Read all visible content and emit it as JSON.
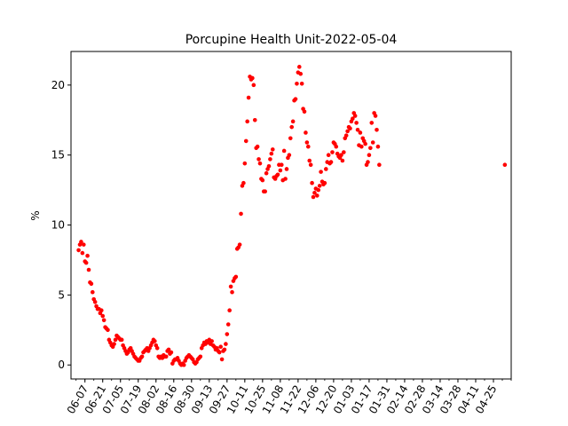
{
  "chart_data": {
    "type": "scatter",
    "title": "Porcupine Health Unit-2022-05-04",
    "xlabel": "",
    "ylabel": "%",
    "x_start": "2021-06-01",
    "x_end": "2022-05-04",
    "ylim": [
      -1.0,
      22.4
    ],
    "yticks": [
      0,
      5,
      10,
      15,
      20
    ],
    "xtick_labels": [
      "06-07",
      "06-21",
      "07-05",
      "07-19",
      "08-02",
      "08-16",
      "08-30",
      "09-13",
      "09-27",
      "10-11",
      "10-25",
      "11-08",
      "11-22",
      "12-06",
      "12-20",
      "01-03",
      "01-17",
      "01-31",
      "02-14",
      "02-28",
      "03-14",
      "03-28",
      "04-11",
      "04-25"
    ],
    "grid": false,
    "legend": "none",
    "marker_color": "#ff0000",
    "series": [
      {
        "points": [
          [
            "2021-06-02",
            8.2
          ],
          [
            "2021-06-03",
            8.6
          ],
          [
            "2021-06-04",
            8.8
          ],
          [
            "2021-06-05",
            8.0
          ],
          [
            "2021-06-06",
            8.6
          ],
          [
            "2021-06-07",
            7.4
          ],
          [
            "2021-06-08",
            7.3
          ],
          [
            "2021-06-09",
            7.8
          ],
          [
            "2021-06-10",
            6.8
          ],
          [
            "2021-06-11",
            5.9
          ],
          [
            "2021-06-12",
            5.8
          ],
          [
            "2021-06-13",
            5.2
          ],
          [
            "2021-06-14",
            4.7
          ],
          [
            "2021-06-15",
            4.5
          ],
          [
            "2021-06-16",
            4.2
          ],
          [
            "2021-06-17",
            4.0
          ],
          [
            "2021-06-18",
            4.0
          ],
          [
            "2021-06-19",
            3.7
          ],
          [
            "2021-06-20",
            3.9
          ],
          [
            "2021-06-21",
            3.5
          ],
          [
            "2021-06-22",
            3.2
          ],
          [
            "2021-06-23",
            2.7
          ],
          [
            "2021-06-24",
            2.6
          ],
          [
            "2021-06-25",
            2.5
          ],
          [
            "2021-06-26",
            1.8
          ],
          [
            "2021-06-27",
            1.6
          ],
          [
            "2021-06-28",
            1.4
          ],
          [
            "2021-06-29",
            1.3
          ],
          [
            "2021-06-30",
            1.5
          ],
          [
            "2021-07-01",
            1.8
          ],
          [
            "2021-07-02",
            2.1
          ],
          [
            "2021-07-03",
            2.0
          ],
          [
            "2021-07-04",
            1.9
          ],
          [
            "2021-07-05",
            1.8
          ],
          [
            "2021-07-06",
            1.8
          ],
          [
            "2021-07-07",
            1.4
          ],
          [
            "2021-07-08",
            1.2
          ],
          [
            "2021-07-09",
            1.0
          ],
          [
            "2021-07-10",
            0.8
          ],
          [
            "2021-07-11",
            0.9
          ],
          [
            "2021-07-12",
            1.1
          ],
          [
            "2021-07-13",
            1.2
          ],
          [
            "2021-07-14",
            1.0
          ],
          [
            "2021-07-15",
            0.8
          ],
          [
            "2021-07-16",
            0.6
          ],
          [
            "2021-07-17",
            0.5
          ],
          [
            "2021-07-18",
            0.4
          ],
          [
            "2021-07-19",
            0.3
          ],
          [
            "2021-07-20",
            0.3
          ],
          [
            "2021-07-21",
            0.5
          ],
          [
            "2021-07-22",
            0.6
          ],
          [
            "2021-07-23",
            0.9
          ],
          [
            "2021-07-24",
            1.0
          ],
          [
            "2021-07-25",
            1.1
          ],
          [
            "2021-07-26",
            1.2
          ],
          [
            "2021-07-27",
            1.0
          ],
          [
            "2021-07-28",
            1.2
          ],
          [
            "2021-07-29",
            1.4
          ],
          [
            "2021-07-30",
            1.6
          ],
          [
            "2021-07-31",
            1.8
          ],
          [
            "2021-08-01",
            1.7
          ],
          [
            "2021-08-02",
            1.4
          ],
          [
            "2021-08-03",
            1.2
          ],
          [
            "2021-08-04",
            0.6
          ],
          [
            "2021-08-05",
            0.5
          ],
          [
            "2021-08-06",
            0.6
          ],
          [
            "2021-08-07",
            0.5
          ],
          [
            "2021-08-08",
            0.7
          ],
          [
            "2021-08-09",
            0.6
          ],
          [
            "2021-08-10",
            0.6
          ],
          [
            "2021-08-11",
            1.0
          ],
          [
            "2021-08-12",
            1.1
          ],
          [
            "2021-08-13",
            0.8
          ],
          [
            "2021-08-14",
            0.9
          ],
          [
            "2021-08-15",
            0.1
          ],
          [
            "2021-08-16",
            0.3
          ],
          [
            "2021-08-17",
            0.4
          ],
          [
            "2021-08-18",
            0.4
          ],
          [
            "2021-08-19",
            0.5
          ],
          [
            "2021-08-20",
            0.3
          ],
          [
            "2021-08-21",
            0.1
          ],
          [
            "2021-08-22",
            0.0
          ],
          [
            "2021-08-23",
            0.1
          ],
          [
            "2021-08-24",
            0.0
          ],
          [
            "2021-08-25",
            0.3
          ],
          [
            "2021-08-26",
            0.5
          ],
          [
            "2021-08-27",
            0.6
          ],
          [
            "2021-08-28",
            0.7
          ],
          [
            "2021-08-29",
            0.6
          ],
          [
            "2021-08-30",
            0.5
          ],
          [
            "2021-08-31",
            0.4
          ],
          [
            "2021-09-01",
            0.2
          ],
          [
            "2021-09-02",
            0.1
          ],
          [
            "2021-09-03",
            0.2
          ],
          [
            "2021-09-04",
            0.4
          ],
          [
            "2021-09-05",
            0.5
          ],
          [
            "2021-09-06",
            0.6
          ],
          [
            "2021-09-07",
            1.2
          ],
          [
            "2021-09-08",
            1.4
          ],
          [
            "2021-09-09",
            1.6
          ],
          [
            "2021-09-10",
            1.5
          ],
          [
            "2021-09-11",
            1.7
          ],
          [
            "2021-09-12",
            1.6
          ],
          [
            "2021-09-13",
            1.8
          ],
          [
            "2021-09-14",
            1.5
          ],
          [
            "2021-09-15",
            1.7
          ],
          [
            "2021-09-16",
            1.4
          ],
          [
            "2021-09-17",
            1.3
          ],
          [
            "2021-09-18",
            1.1
          ],
          [
            "2021-09-19",
            1.2
          ],
          [
            "2021-09-20",
            1.0
          ],
          [
            "2021-09-21",
            0.9
          ],
          [
            "2021-09-22",
            1.3
          ],
          [
            "2021-09-23",
            0.4
          ],
          [
            "2021-09-24",
            1.0
          ],
          [
            "2021-09-25",
            1.1
          ],
          [
            "2021-09-26",
            1.5
          ],
          [
            "2021-09-27",
            2.2
          ],
          [
            "2021-09-28",
            2.9
          ],
          [
            "2021-09-29",
            3.9
          ],
          [
            "2021-09-30",
            5.6
          ],
          [
            "2021-10-01",
            5.2
          ],
          [
            "2021-10-02",
            6.0
          ],
          [
            "2021-10-03",
            6.2
          ],
          [
            "2021-10-04",
            6.3
          ],
          [
            "2021-10-05",
            8.3
          ],
          [
            "2021-10-06",
            8.4
          ],
          [
            "2021-10-07",
            8.6
          ],
          [
            "2021-10-08",
            10.8
          ],
          [
            "2021-10-09",
            12.8
          ],
          [
            "2021-10-10",
            13.0
          ],
          [
            "2021-10-11",
            14.4
          ],
          [
            "2021-10-12",
            16.0
          ],
          [
            "2021-10-13",
            17.4
          ],
          [
            "2021-10-14",
            19.1
          ],
          [
            "2021-10-15",
            20.6
          ],
          [
            "2021-10-16",
            20.4
          ],
          [
            "2021-10-17",
            20.5
          ],
          [
            "2021-10-18",
            20.0
          ],
          [
            "2021-10-19",
            17.5
          ],
          [
            "2021-10-20",
            15.5
          ],
          [
            "2021-10-21",
            15.6
          ],
          [
            "2021-10-22",
            14.7
          ],
          [
            "2021-10-23",
            14.4
          ],
          [
            "2021-10-24",
            13.3
          ],
          [
            "2021-10-25",
            13.2
          ],
          [
            "2021-10-26",
            12.4
          ],
          [
            "2021-10-27",
            12.4
          ],
          [
            "2021-10-28",
            13.7
          ],
          [
            "2021-10-29",
            14.0
          ],
          [
            "2021-10-30",
            14.2
          ],
          [
            "2021-10-31",
            14.7
          ],
          [
            "2021-11-01",
            15.1
          ],
          [
            "2021-11-02",
            15.4
          ],
          [
            "2021-11-03",
            13.4
          ],
          [
            "2021-11-04",
            13.3
          ],
          [
            "2021-11-05",
            13.5
          ],
          [
            "2021-11-06",
            13.6
          ],
          [
            "2021-11-07",
            14.3
          ],
          [
            "2021-11-08",
            13.9
          ],
          [
            "2021-11-09",
            14.3
          ],
          [
            "2021-11-10",
            13.2
          ],
          [
            "2021-11-11",
            15.3
          ],
          [
            "2021-11-12",
            13.3
          ],
          [
            "2021-11-13",
            14.0
          ],
          [
            "2021-11-14",
            14.8
          ],
          [
            "2021-11-15",
            15.0
          ],
          [
            "2021-11-16",
            16.2
          ],
          [
            "2021-11-17",
            17.0
          ],
          [
            "2021-11-18",
            17.4
          ],
          [
            "2021-11-19",
            18.9
          ],
          [
            "2021-11-20",
            19.0
          ],
          [
            "2021-11-21",
            20.1
          ],
          [
            "2021-11-22",
            20.9
          ],
          [
            "2021-11-23",
            21.3
          ],
          [
            "2021-11-24",
            20.8
          ],
          [
            "2021-11-25",
            20.1
          ],
          [
            "2021-11-26",
            18.3
          ],
          [
            "2021-11-27",
            18.1
          ],
          [
            "2021-11-28",
            16.6
          ],
          [
            "2021-11-29",
            15.9
          ],
          [
            "2021-11-30",
            15.6
          ],
          [
            "2021-12-01",
            14.6
          ],
          [
            "2021-12-02",
            14.3
          ],
          [
            "2021-12-03",
            13.0
          ],
          [
            "2021-12-04",
            12.0
          ],
          [
            "2021-12-05",
            12.3
          ],
          [
            "2021-12-06",
            12.6
          ],
          [
            "2021-12-07",
            12.1
          ],
          [
            "2021-12-08",
            12.5
          ],
          [
            "2021-12-09",
            12.8
          ],
          [
            "2021-12-10",
            13.8
          ],
          [
            "2021-12-11",
            13.1
          ],
          [
            "2021-12-12",
            12.9
          ],
          [
            "2021-12-13",
            13.0
          ],
          [
            "2021-12-14",
            14.0
          ],
          [
            "2021-12-15",
            14.5
          ],
          [
            "2021-12-16",
            15.0
          ],
          [
            "2021-12-17",
            14.4
          ],
          [
            "2021-12-18",
            14.5
          ],
          [
            "2021-12-19",
            15.2
          ],
          [
            "2021-12-20",
            15.9
          ],
          [
            "2021-12-21",
            15.8
          ],
          [
            "2021-12-22",
            15.6
          ],
          [
            "2021-12-23",
            15.1
          ],
          [
            "2021-12-24",
            14.9
          ],
          [
            "2021-12-25",
            14.8
          ],
          [
            "2021-12-26",
            15.0
          ],
          [
            "2021-12-27",
            14.6
          ],
          [
            "2021-12-28",
            15.2
          ],
          [
            "2021-12-29",
            16.2
          ],
          [
            "2021-12-30",
            16.4
          ],
          [
            "2021-12-31",
            16.7
          ],
          [
            "2022-01-01",
            17.0
          ],
          [
            "2022-01-02",
            16.9
          ],
          [
            "2022-01-03",
            17.4
          ],
          [
            "2022-01-04",
            17.6
          ],
          [
            "2022-01-05",
            18.0
          ],
          [
            "2022-01-06",
            17.8
          ],
          [
            "2022-01-07",
            17.3
          ],
          [
            "2022-01-08",
            16.8
          ],
          [
            "2022-01-09",
            15.7
          ],
          [
            "2022-01-10",
            16.6
          ],
          [
            "2022-01-11",
            15.6
          ],
          [
            "2022-01-12",
            16.2
          ],
          [
            "2022-01-13",
            16.0
          ],
          [
            "2022-01-14",
            15.8
          ],
          [
            "2022-01-15",
            14.3
          ],
          [
            "2022-01-16",
            14.5
          ],
          [
            "2022-01-17",
            15.0
          ],
          [
            "2022-01-18",
            15.5
          ],
          [
            "2022-01-19",
            17.3
          ],
          [
            "2022-01-20",
            15.9
          ],
          [
            "2022-01-21",
            18.0
          ],
          [
            "2022-01-22",
            17.8
          ],
          [
            "2022-01-23",
            16.8
          ],
          [
            "2022-01-24",
            15.6
          ],
          [
            "2022-01-25",
            14.3
          ],
          [
            "2022-05-04",
            14.3
          ]
        ]
      }
    ]
  }
}
